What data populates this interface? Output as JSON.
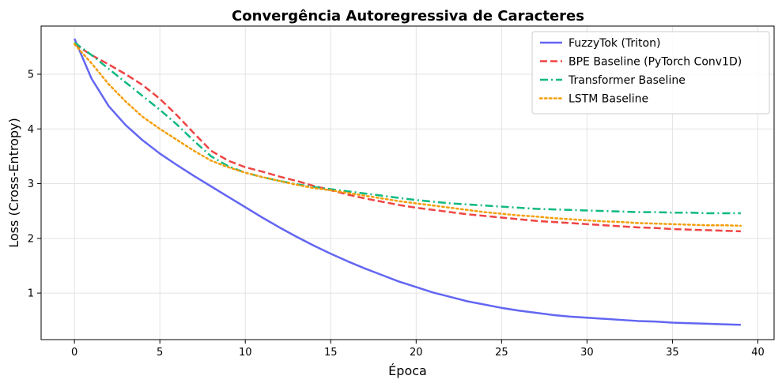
{
  "chart_data": {
    "type": "line",
    "title": "Convergência Autoregressiva de Caracteres",
    "xlabel": "Época",
    "ylabel": "Loss (Cross-Entropy)",
    "xlim": [
      -1.95,
      40.95
    ],
    "ylim": [
      0.15,
      5.88
    ],
    "xticks": [
      0,
      5,
      10,
      15,
      20,
      25,
      30,
      35,
      40
    ],
    "yticks": [
      1,
      2,
      3,
      4,
      5
    ],
    "grid": true,
    "legend_position": "top-right",
    "x": [
      0,
      1,
      2,
      3,
      4,
      5,
      6,
      7,
      8,
      9,
      10,
      11,
      12,
      13,
      14,
      15,
      16,
      17,
      18,
      19,
      20,
      21,
      22,
      23,
      24,
      25,
      26,
      27,
      28,
      29,
      30,
      31,
      32,
      33,
      34,
      35,
      36,
      37,
      38,
      39
    ],
    "series": [
      {
        "name": "FuzzyTok (Triton)",
        "color": "#6366f1",
        "dash": "solid",
        "values": [
          5.65,
          4.92,
          4.42,
          4.07,
          3.79,
          3.55,
          3.34,
          3.14,
          2.95,
          2.76,
          2.57,
          2.38,
          2.2,
          2.03,
          1.87,
          1.72,
          1.58,
          1.45,
          1.33,
          1.21,
          1.11,
          1.01,
          0.93,
          0.85,
          0.79,
          0.73,
          0.68,
          0.64,
          0.6,
          0.57,
          0.55,
          0.53,
          0.51,
          0.49,
          0.48,
          0.46,
          0.45,
          0.44,
          0.43,
          0.42
        ]
      },
      {
        "name": "BPE Baseline (PyTorch Conv1D)",
        "color": "#ef4444",
        "dash": "dashed",
        "values": [
          5.55,
          5.35,
          5.18,
          5.0,
          4.8,
          4.55,
          4.25,
          3.92,
          3.6,
          3.42,
          3.3,
          3.22,
          3.13,
          3.05,
          2.96,
          2.88,
          2.8,
          2.73,
          2.67,
          2.61,
          2.56,
          2.52,
          2.48,
          2.44,
          2.41,
          2.38,
          2.35,
          2.32,
          2.3,
          2.28,
          2.26,
          2.24,
          2.22,
          2.2,
          2.19,
          2.17,
          2.16,
          2.15,
          2.14,
          2.13
        ]
      },
      {
        "name": "Transformer Baseline",
        "color": "#10b981",
        "dash": "dashdot",
        "values": [
          5.58,
          5.35,
          5.1,
          4.85,
          4.6,
          4.35,
          4.08,
          3.78,
          3.5,
          3.32,
          3.2,
          3.12,
          3.05,
          2.99,
          2.94,
          2.9,
          2.86,
          2.82,
          2.78,
          2.74,
          2.7,
          2.67,
          2.64,
          2.62,
          2.6,
          2.58,
          2.56,
          2.54,
          2.53,
          2.52,
          2.51,
          2.5,
          2.49,
          2.48,
          2.48,
          2.47,
          2.47,
          2.46,
          2.46,
          2.46
        ]
      },
      {
        "name": "LSTM Baseline",
        "color": "#f59e0b",
        "dash": "dotted",
        "values": [
          5.55,
          5.2,
          4.82,
          4.5,
          4.22,
          4.0,
          3.8,
          3.6,
          3.42,
          3.3,
          3.2,
          3.12,
          3.05,
          2.98,
          2.92,
          2.88,
          2.83,
          2.78,
          2.73,
          2.68,
          2.64,
          2.6,
          2.56,
          2.52,
          2.48,
          2.45,
          2.42,
          2.4,
          2.37,
          2.35,
          2.33,
          2.31,
          2.3,
          2.28,
          2.27,
          2.26,
          2.25,
          2.24,
          2.24,
          2.23
        ]
      }
    ]
  }
}
